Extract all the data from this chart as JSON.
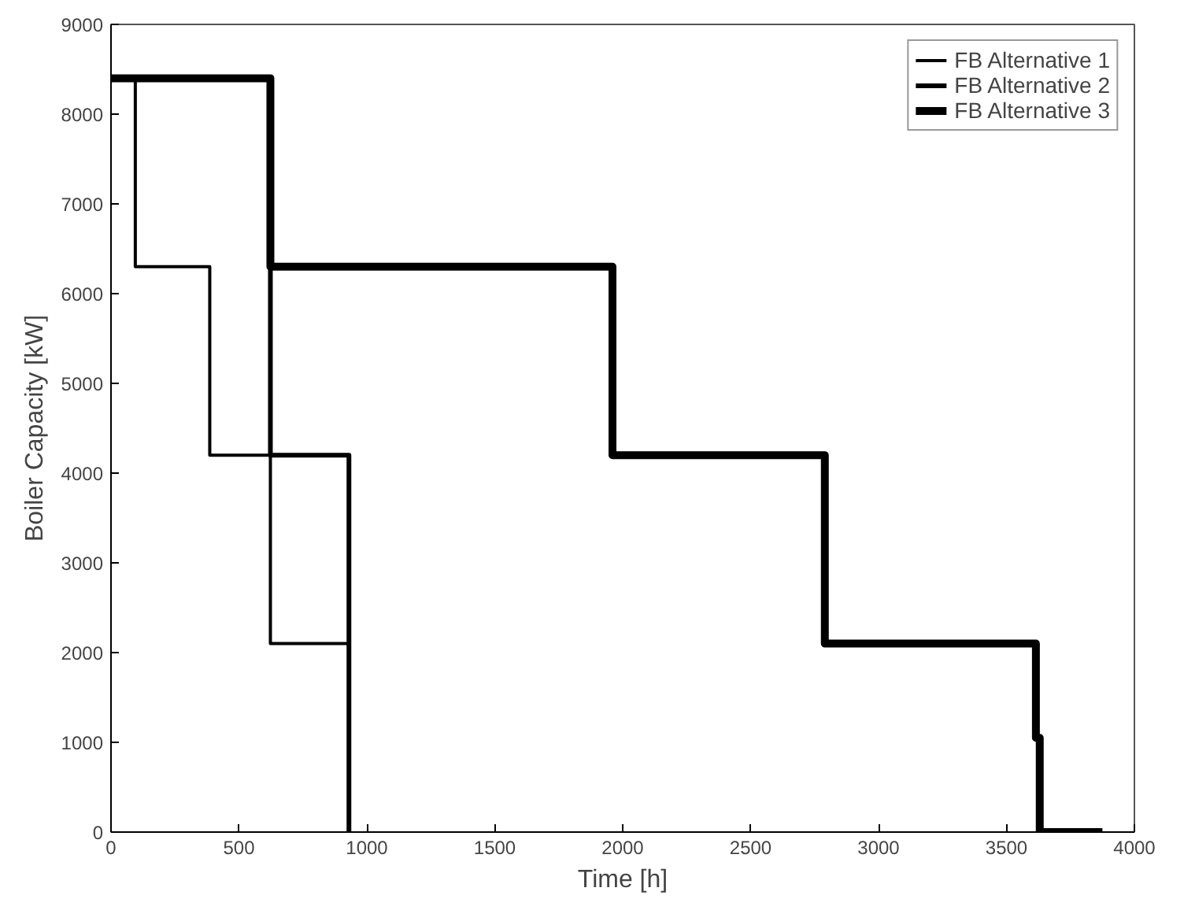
{
  "chart_data": {
    "type": "step",
    "xlabel": "Time [h]",
    "ylabel": "Boiler Capacity [kW]",
    "xlim": [
      0,
      4000
    ],
    "xticks": [
      0,
      500,
      1000,
      1500,
      2000,
      2500,
      3000,
      3500,
      4000
    ],
    "ylim": [
      0,
      9000
    ],
    "yticks": [
      0,
      1000,
      2000,
      3000,
      4000,
      5000,
      6000,
      7000,
      8000,
      9000
    ],
    "grid": false,
    "legend": "top right",
    "series": [
      {
        "name": "FB Alternative 1",
        "color": "#000000",
        "x": [
          0,
          95,
          386,
          623,
          930
        ],
        "values": [
          8400,
          6300,
          4200,
          2100,
          0
        ]
      },
      {
        "name": "FB Alternative 2",
        "color": "#000000",
        "x": [
          0,
          623,
          930
        ],
        "values": [
          8400,
          4200,
          0
        ]
      },
      {
        "name": "FB Alternative 3",
        "color": "#000000",
        "x": [
          0,
          623,
          1960,
          2790,
          3615,
          3630,
          3875
        ],
        "values": [
          8400,
          6300,
          4200,
          2100,
          1050,
          0,
          0
        ]
      }
    ]
  }
}
